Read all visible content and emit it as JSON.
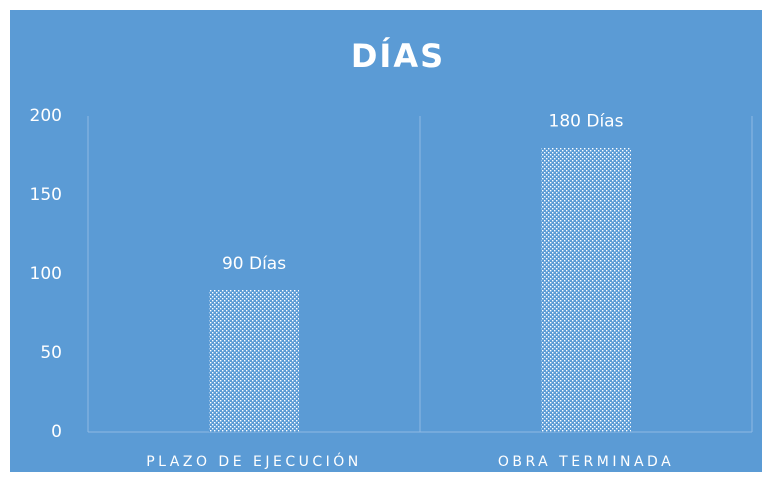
{
  "chart_data": {
    "type": "bar",
    "title": "DÍAS",
    "categories": [
      "PLAZO DE EJECUCIÓN",
      "OBRA TERMINADA"
    ],
    "values": [
      90,
      180
    ],
    "value_labels": [
      "90 Días",
      "180 Días"
    ],
    "color": "#ffffff",
    "background": "#5b9bd5",
    "ylim": [
      0,
      200
    ],
    "yticks": [
      0,
      50,
      100,
      150,
      200
    ],
    "grid": false
  }
}
